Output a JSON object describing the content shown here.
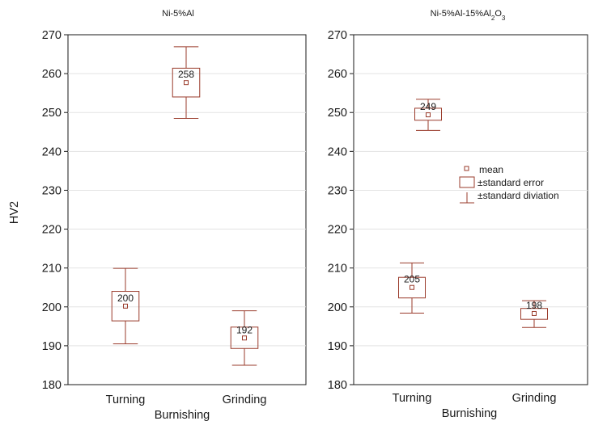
{
  "figure": {
    "ylabel": "HV2",
    "box_color": "#9a3b2b",
    "legend": {
      "mean": "mean",
      "se": "±standard error",
      "sd": "±standard diviation"
    }
  },
  "chart_data": [
    {
      "type": "box",
      "title": "Ni-5%Al",
      "xlabel": "Burnishing",
      "ylabel": "HV2",
      "ylim": [
        180,
        270
      ],
      "yticks": [
        180,
        190,
        200,
        210,
        220,
        230,
        240,
        250,
        260,
        270
      ],
      "categories": [
        "Turning",
        "Grinding"
      ],
      "boxes": [
        {
          "category": "Turning",
          "mean": 200.2,
          "se": [
            196.4,
            204.0
          ],
          "sd": [
            190.5,
            209.9
          ],
          "label": "200"
        },
        {
          "category": "Grinding",
          "mean": 192.0,
          "se": [
            189.3,
            194.8
          ],
          "sd": [
            185.0,
            199.0
          ],
          "label": "192"
        },
        {
          "category": "Turning",
          "mean": 257.7,
          "se": [
            254.0,
            261.4
          ],
          "sd": [
            248.5,
            266.9
          ],
          "label": "258"
        }
      ]
    },
    {
      "type": "box",
      "title": "Ni-5%Al-15%Al2O3",
      "xlabel": "Burnishing",
      "ylim": [
        180,
        270
      ],
      "yticks": [
        180,
        190,
        200,
        210,
        220,
        230,
        240,
        250,
        260,
        270
      ],
      "categories": [
        "Turning",
        "Grinding"
      ],
      "boxes": [
        {
          "category": "Turning",
          "mean": 205.0,
          "se": [
            202.3,
            207.6
          ],
          "sd": [
            198.4,
            211.3
          ],
          "label": "205"
        },
        {
          "category": "Grinding",
          "mean": 198.3,
          "se": [
            196.8,
            199.6
          ],
          "sd": [
            194.7,
            201.6
          ],
          "label": "198"
        },
        {
          "category": "Turning",
          "mean": 249.4,
          "se": [
            248.0,
            251.1
          ],
          "sd": [
            245.4,
            253.4
          ],
          "label": "249"
        }
      ]
    }
  ]
}
